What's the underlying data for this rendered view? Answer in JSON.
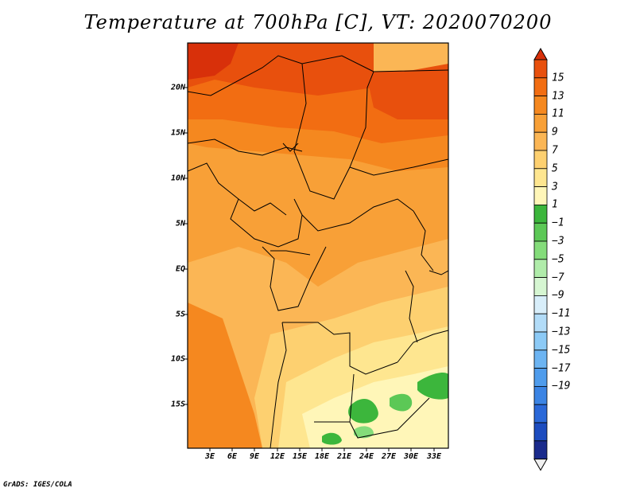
{
  "title": "Temperature at 700hPa [C], VT: 2020070200",
  "credit": "GrADS: IGES/COLA",
  "lat_labels": [
    "20N",
    "15N",
    "10N",
    "5N",
    "EQ",
    "5S",
    "10S",
    "15S"
  ],
  "lon_labels": [
    "3E",
    "6E",
    "9E",
    "12E",
    "15E",
    "18E",
    "21E",
    "24E",
    "27E",
    "30E",
    "33E"
  ],
  "colorbar": {
    "labels": [
      "15",
      "13",
      "11",
      "9",
      "7",
      "5",
      "3",
      "1",
      "−1",
      "−3",
      "−5",
      "−7",
      "−9",
      "−11",
      "−13",
      "−15",
      "−17",
      "−19"
    ],
    "colors": [
      "#f0f0f0",
      "#1a2b8c",
      "#1c4cbf",
      "#2a68d8",
      "#3b84e4",
      "#4f9cec",
      "#6cb4f2",
      "#8ccaf6",
      "#b2dcf8",
      "#d8eefa",
      "#d6f6d2",
      "#b0ecaa",
      "#84dc7a",
      "#5cc856",
      "#3cb63c",
      "#fff6b8",
      "#fee690",
      "#fdd070",
      "#fbb655",
      "#f8a037",
      "#f5881f",
      "#f26d12",
      "#e8500d",
      "#d8300a"
    ]
  },
  "map": {
    "variable": "Temperature at 700hPa",
    "units": "C",
    "valid_time": "2020070200",
    "lon_range": [
      0,
      35
    ],
    "lat_range": [
      -20,
      24
    ]
  }
}
